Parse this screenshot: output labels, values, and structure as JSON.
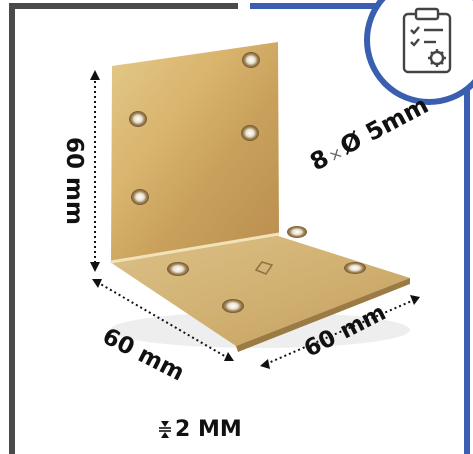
{
  "dimensions": {
    "height_label": "60 mm",
    "width_left_label": "60 mm",
    "width_right_label": "60 mm"
  },
  "holes": {
    "count": "8",
    "separator": "×",
    "diameter": "Ø 5mm"
  },
  "thickness": {
    "label": "2 MM"
  },
  "badge": {
    "icon": "checklist-gear-icon",
    "color": "#3a5fb0"
  },
  "frame_colors": {
    "left": "#4a4a4a",
    "right": "#3a5fb0"
  }
}
